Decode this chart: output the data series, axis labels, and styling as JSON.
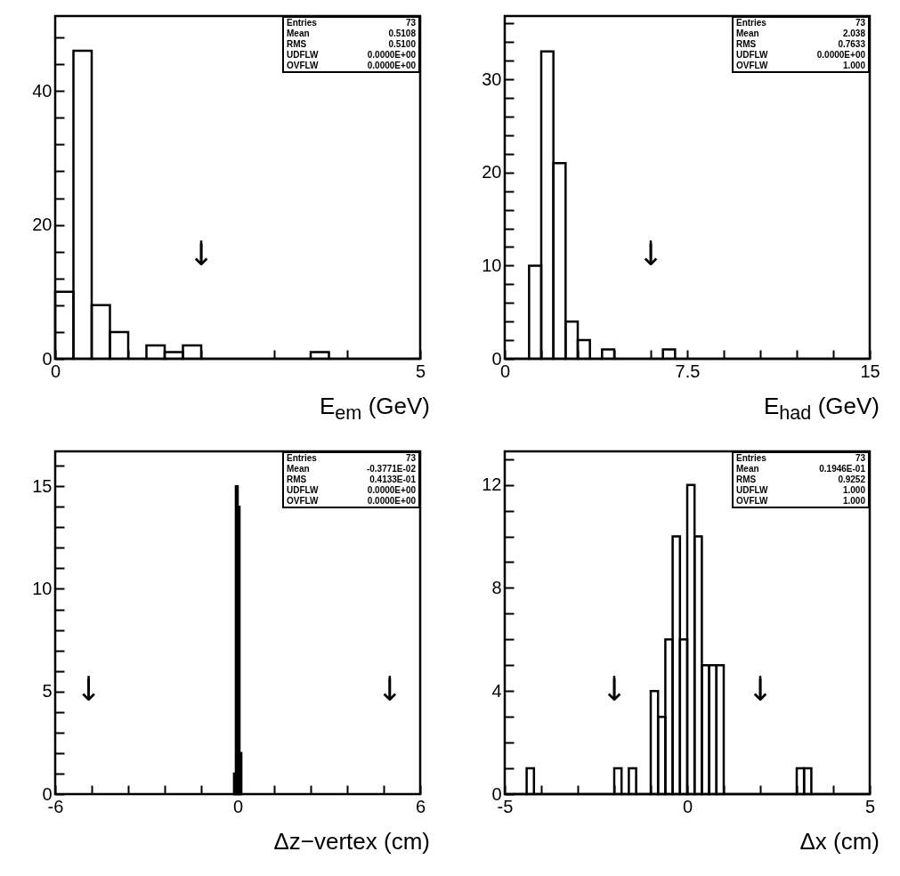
{
  "chart_data": [
    {
      "type": "histogram",
      "xlabel": "E$_{em}$ (GeV)",
      "color": "#000000",
      "grid": false,
      "bins": [
        0,
        0.25,
        0.5,
        0.75,
        1,
        1.25,
        1.5,
        1.75,
        2,
        2.25,
        2.5,
        2.75,
        3,
        3.25,
        3.5,
        3.75,
        4,
        4.25,
        4.5,
        4.75,
        5
      ],
      "values": [
        10,
        46,
        8,
        4,
        0,
        2,
        1,
        2,
        0,
        0,
        0,
        0,
        0,
        0,
        1,
        0,
        0,
        0,
        0,
        0
      ],
      "xlim": [
        0,
        5
      ],
      "xticks": [
        0,
        {
          "value": 1,
          "label": null
        },
        {
          "value": 2,
          "label": null
        },
        {
          "value": 3,
          "label": null
        },
        {
          "value": 4,
          "label": null
        },
        5
      ],
      "ylim": [
        0,
        51.2
      ],
      "yticks": [
        0,
        {
          "value": 4,
          "label": null
        },
        {
          "value": 8,
          "label": null
        },
        {
          "value": 12,
          "label": null
        },
        {
          "value": 16,
          "label": null
        },
        20,
        {
          "value": 24,
          "label": null
        },
        {
          "value": 28,
          "label": null
        },
        {
          "value": 32,
          "label": null
        },
        {
          "value": 36,
          "label": null
        },
        40,
        {
          "value": 44,
          "label": null
        },
        {
          "value": 48,
          "label": null
        }
      ],
      "annotations": [
        "Entries 73",
        "Mean 0.5108",
        "RMS 0.5100",
        "UDFLW 0.0000E+00",
        "OVFLW 0.0000E+00"
      ],
      "ref_lines": [
        {
          "axis": "x",
          "value": 2,
          "label": "↓"
        }
      ]
    },
    {
      "type": "histogram",
      "xlabel": "E$_{had}$ (GeV)",
      "color": "#000000",
      "grid": false,
      "bins": [
        0,
        0.5,
        1,
        1.5,
        2,
        2.5,
        3,
        3.5,
        4,
        4.5,
        5,
        5.5,
        6,
        6.5,
        7,
        7.5,
        8,
        8.5,
        9,
        9.5,
        10,
        10.5,
        11,
        11.5,
        12,
        12.5,
        13,
        13.5,
        14,
        14.5,
        15
      ],
      "values": [
        0,
        0,
        10,
        33,
        21,
        4,
        2,
        0,
        1,
        0,
        0,
        0,
        0,
        1,
        0,
        0,
        0,
        0,
        0,
        0,
        0,
        0,
        0,
        0,
        0,
        0,
        0,
        0,
        0,
        0
      ],
      "xlim": [
        0,
        15
      ],
      "xticks": [
        0,
        {
          "value": 1.5,
          "label": null
        },
        {
          "value": 3,
          "label": null
        },
        {
          "value": 4.5,
          "label": null
        },
        {
          "value": 6,
          "label": null
        },
        7.5,
        {
          "value": 9,
          "label": null
        },
        {
          "value": 10.5,
          "label": null
        },
        {
          "value": 12,
          "label": null
        },
        {
          "value": 13.5,
          "label": null
        },
        15
      ],
      "ylim": [
        0,
        36.8
      ],
      "yticks": [
        0,
        {
          "value": 2,
          "label": null
        },
        {
          "value": 4,
          "label": null
        },
        {
          "value": 6,
          "label": null
        },
        {
          "value": 8,
          "label": null
        },
        10,
        {
          "value": 12,
          "label": null
        },
        {
          "value": 14,
          "label": null
        },
        {
          "value": 16,
          "label": null
        },
        {
          "value": 18,
          "label": null
        },
        20,
        {
          "value": 22,
          "label": null
        },
        {
          "value": 24,
          "label": null
        },
        {
          "value": 26,
          "label": null
        },
        {
          "value": 28,
          "label": null
        },
        30,
        {
          "value": 32,
          "label": null
        },
        {
          "value": 34,
          "label": null
        },
        {
          "value": 36,
          "label": null
        }
      ],
      "annotations": [
        "Entries 73",
        "Mean 2.038",
        "RMS 0.7633",
        "UDFLW 0.0000E+00",
        "OVFLW 1.000"
      ],
      "ref_lines": [
        {
          "axis": "x",
          "value": 6,
          "label": "↓"
        }
      ]
    },
    {
      "type": "histogram",
      "xlabel": "Δz−vertex (cm)",
      "color": "#000000",
      "grid": false,
      "bins": [
        -0.12,
        -0.06,
        0,
        0.06,
        0.12
      ],
      "values": [
        1,
        15,
        14,
        2
      ],
      "xlim": [
        -6,
        6
      ],
      "xticks": [
        -6,
        {
          "value": -4.8,
          "label": null
        },
        {
          "value": -3.6,
          "label": null
        },
        {
          "value": -2.4,
          "label": null
        },
        {
          "value": -1.2,
          "label": null
        },
        0,
        {
          "value": 1.2,
          "label": null
        },
        {
          "value": 2.4,
          "label": null
        },
        {
          "value": 3.6,
          "label": null
        },
        {
          "value": 4.8,
          "label": null
        },
        6
      ],
      "ylim": [
        0,
        16.7
      ],
      "yticks": [
        0,
        {
          "value": 1,
          "label": null
        },
        {
          "value": 2,
          "label": null
        },
        {
          "value": 3,
          "label": null
        },
        {
          "value": 4,
          "label": null
        },
        5,
        {
          "value": 6,
          "label": null
        },
        {
          "value": 7,
          "label": null
        },
        {
          "value": 8,
          "label": null
        },
        {
          "value": 9,
          "label": null
        },
        10,
        {
          "value": 11,
          "label": null
        },
        {
          "value": 12,
          "label": null
        },
        {
          "value": 13,
          "label": null
        },
        {
          "value": 14,
          "label": null
        },
        15,
        {
          "value": 16,
          "label": null
        }
      ],
      "annotations": [
        "Entries 73",
        "Mean -0.3771E-02",
        "RMS 0.4133E-01",
        "UDFLW 0.0000E+00",
        "OVFLW 0.0000E+00"
      ],
      "ref_lines": [
        {
          "axis": "x",
          "value": -4.9,
          "label": "↓"
        },
        {
          "axis": "x",
          "value": 5,
          "label": "↓"
        }
      ]
    },
    {
      "type": "histogram",
      "xlabel": "Δx (cm)",
      "color": "#000000",
      "grid": false,
      "bins": [
        -5,
        -4.8,
        -4.6,
        -4.4,
        -4.2,
        -4,
        -3.8,
        -3.6,
        -3.4,
        -3.2,
        -3,
        -2.8,
        -2.6,
        -2.4,
        -2.2,
        -2,
        -1.8,
        -1.6,
        -1.4,
        -1.2,
        -1,
        -0.8,
        -0.6,
        -0.4,
        -0.2,
        0,
        0.2,
        0.4,
        0.6,
        0.8,
        1,
        1.2,
        1.4,
        1.6,
        1.8,
        2,
        2.2,
        2.4,
        2.6,
        2.8,
        3,
        3.2,
        3.4,
        3.6,
        3.8,
        4,
        4.2,
        4.4,
        4.6,
        4.8,
        5
      ],
      "values": [
        0,
        0,
        0,
        1,
        0,
        0,
        0,
        0,
        0,
        0,
        0,
        0,
        0,
        0,
        0,
        1,
        0,
        1,
        0,
        0,
        4,
        3,
        6,
        10,
        6,
        12,
        10,
        5,
        5,
        5,
        0,
        0,
        0,
        0,
        0,
        0,
        0,
        0,
        0,
        0,
        1,
        1,
        0,
        0,
        0,
        0,
        0,
        0,
        0,
        0
      ],
      "xlim": [
        -5,
        5
      ],
      "xticks": [
        -5,
        {
          "value": -4,
          "label": null
        },
        {
          "value": -3,
          "label": null
        },
        {
          "value": -2,
          "label": null
        },
        {
          "value": -1,
          "label": null
        },
        0,
        {
          "value": 1,
          "label": null
        },
        {
          "value": 2,
          "label": null
        },
        {
          "value": 3,
          "label": null
        },
        {
          "value": 4,
          "label": null
        },
        5
      ],
      "ylim": [
        0,
        13.3
      ],
      "yticks": [
        0,
        {
          "value": 1,
          "label": null
        },
        {
          "value": 2,
          "label": null
        },
        {
          "value": 3,
          "label": null
        },
        4,
        {
          "value": 5,
          "label": null
        },
        {
          "value": 6,
          "label": null
        },
        {
          "value": 7,
          "label": null
        },
        8,
        {
          "value": 9,
          "label": null
        },
        {
          "value": 10,
          "label": null
        },
        {
          "value": 11,
          "label": null
        },
        12,
        {
          "value": 13,
          "label": null
        }
      ],
      "annotations": [
        "Entries 73",
        "Mean 0.1946E-01",
        "RMS 0.9252",
        "UDFLW 1.000",
        "OVFLW 1.000"
      ],
      "ref_lines": [
        {
          "axis": "x",
          "value": -2,
          "label": "↓"
        },
        {
          "axis": "x",
          "value": 2,
          "label": "↓"
        }
      ]
    }
  ]
}
